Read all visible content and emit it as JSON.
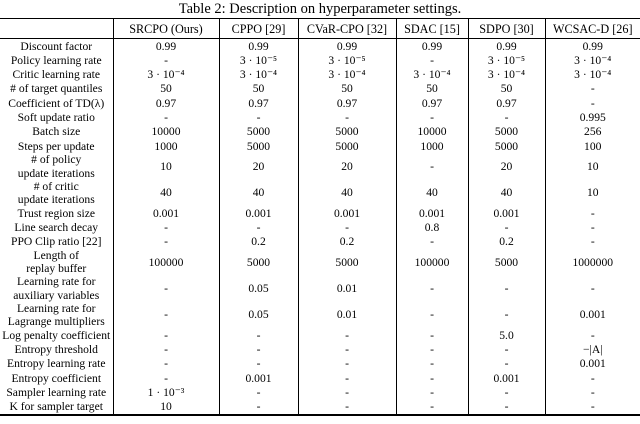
{
  "caption": "Table 2: Description on hyperparameter settings.",
  "colors": {
    "text": "#000000",
    "background": "#ffffff",
    "rule": "#000000"
  },
  "table": {
    "columns": [
      "SRCPO (Ours)",
      "CPPO [29]",
      "CVaR-CPO [32]",
      "SDAC [15]",
      "SDPO [30]",
      "WCSAC-D [26]"
    ],
    "rows": [
      {
        "label": "Discount factor",
        "values": [
          "0.99",
          "0.99",
          "0.99",
          "0.99",
          "0.99",
          "0.99"
        ]
      },
      {
        "label": "Policy learning rate",
        "values": [
          "-",
          "3 · 10⁻⁵",
          "3 · 10⁻⁵",
          "-",
          "3 · 10⁻⁵",
          "3 · 10⁻⁴"
        ]
      },
      {
        "label": "Critic learning rate",
        "values": [
          "3 · 10⁻⁴",
          "3 · 10⁻⁴",
          "3 · 10⁻⁴",
          "3 · 10⁻⁴",
          "3 · 10⁻⁴",
          "3 · 10⁻⁴"
        ]
      },
      {
        "label": "# of target quantiles",
        "values": [
          "50",
          "50",
          "50",
          "50",
          "50",
          "-"
        ]
      },
      {
        "label": "Coefficient of TD(λ)",
        "values": [
          "0.97",
          "0.97",
          "0.97",
          "0.97",
          "0.97",
          "-"
        ]
      },
      {
        "label": "Soft update ratio",
        "values": [
          "-",
          "-",
          "-",
          "-",
          "-",
          "0.995"
        ]
      },
      {
        "label": "Batch size",
        "values": [
          "10000",
          "5000",
          "5000",
          "10000",
          "5000",
          "256"
        ]
      },
      {
        "label": "Steps per update",
        "values": [
          "1000",
          "5000",
          "5000",
          "1000",
          "5000",
          "100"
        ]
      },
      {
        "label": "# of policy\nupdate iterations",
        "values": [
          "10",
          "20",
          "20",
          "-",
          "20",
          "10"
        ]
      },
      {
        "label": "# of critic\nupdate iterations",
        "values": [
          "40",
          "40",
          "40",
          "40",
          "40",
          "10"
        ]
      },
      {
        "label": "Trust region size",
        "values": [
          "0.001",
          "0.001",
          "0.001",
          "0.001",
          "0.001",
          "-"
        ]
      },
      {
        "label": "Line search decay",
        "values": [
          "-",
          "-",
          "-",
          "0.8",
          "-",
          "-"
        ]
      },
      {
        "label": "PPO Clip ratio [22]",
        "values": [
          "-",
          "0.2",
          "0.2",
          "-",
          "0.2",
          "-"
        ]
      },
      {
        "label": "Length of\nreplay buffer",
        "values": [
          "100000",
          "5000",
          "5000",
          "100000",
          "5000",
          "1000000"
        ]
      },
      {
        "label": "Learning rate for\nauxiliary variables",
        "values": [
          "-",
          "0.05",
          "0.01",
          "-",
          "-",
          "-"
        ]
      },
      {
        "label": "Learning rate for\nLagrange multipliers",
        "values": [
          "-",
          "0.05",
          "0.01",
          "-",
          "-",
          "0.001"
        ]
      },
      {
        "label": "Log penalty coefficient",
        "values": [
          "-",
          "-",
          "-",
          "-",
          "5.0",
          "-"
        ]
      },
      {
        "label": "Entropy threshold",
        "values": [
          "-",
          "-",
          "-",
          "-",
          "-",
          "−|A|"
        ]
      },
      {
        "label": "Entropy learning rate",
        "values": [
          "-",
          "-",
          "-",
          "-",
          "-",
          "0.001"
        ]
      },
      {
        "label": "Entropy coefficient",
        "values": [
          "-",
          "0.001",
          "-",
          "-",
          "0.001",
          "-"
        ]
      },
      {
        "label": "Sampler learning rate",
        "values": [
          "1 · 10⁻³",
          "-",
          "-",
          "-",
          "-",
          "-"
        ]
      },
      {
        "label": "K for sampler target",
        "values": [
          "10",
          "-",
          "-",
          "-",
          "-",
          "-"
        ]
      }
    ]
  }
}
